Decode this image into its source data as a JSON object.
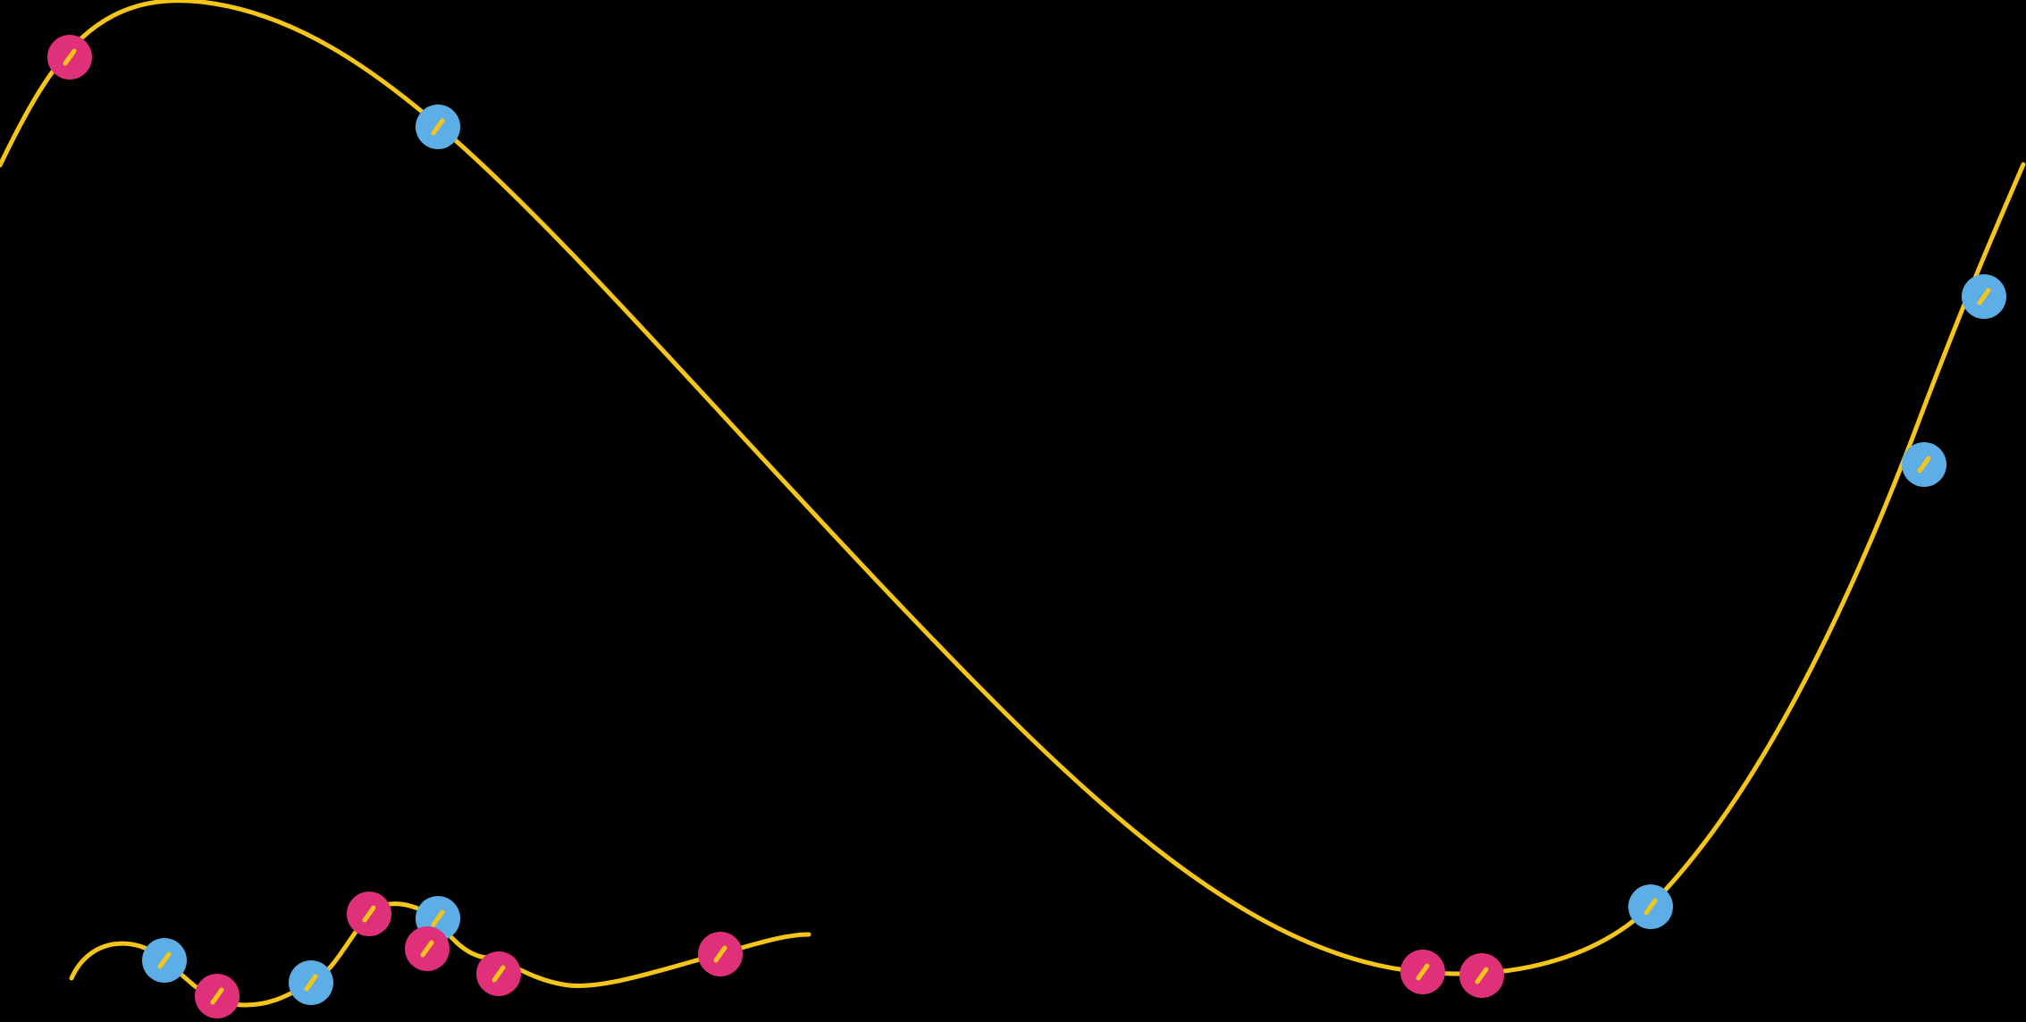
{
  "palette": {
    "background": "#000000",
    "curve": "#F5C518",
    "bead_pink": "#E0307A",
    "bead_blue": "#5DAEE6"
  },
  "large_curve": {
    "bead_colors": [
      "pink",
      "blue",
      "pink",
      "pink",
      "blue",
      "blue",
      "blue"
    ]
  },
  "small_curve": {
    "bead_colors": [
      "blue",
      "pink",
      "blue",
      "pink",
      "blue",
      "pink",
      "pink",
      "pink"
    ]
  }
}
